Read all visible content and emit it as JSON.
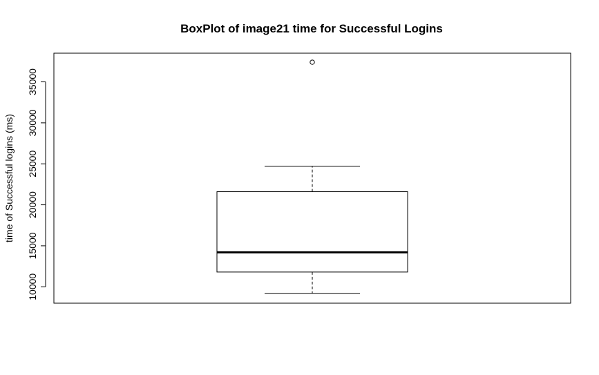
{
  "chart_data": {
    "type": "box",
    "title": "BoxPlot of image21 time for Successful Logins",
    "xlabel": "",
    "ylabel": "time of Successful logins (ms)",
    "ylim": [
      8000,
      38500
    ],
    "yticks": [
      10000,
      15000,
      20000,
      25000,
      30000,
      35000
    ],
    "ytick_labels": [
      "10000",
      "15000",
      "20000",
      "25000",
      "30000",
      "35000"
    ],
    "grid": false,
    "legend": "none",
    "boxes": [
      {
        "min": 9200,
        "q1": 11800,
        "median": 14200,
        "q3": 21600,
        "max": 24700,
        "outliers": [
          37400
        ]
      }
    ]
  },
  "colors": {
    "stroke": "#000000",
    "background": "#ffffff",
    "box_fill": "#ffffff"
  }
}
